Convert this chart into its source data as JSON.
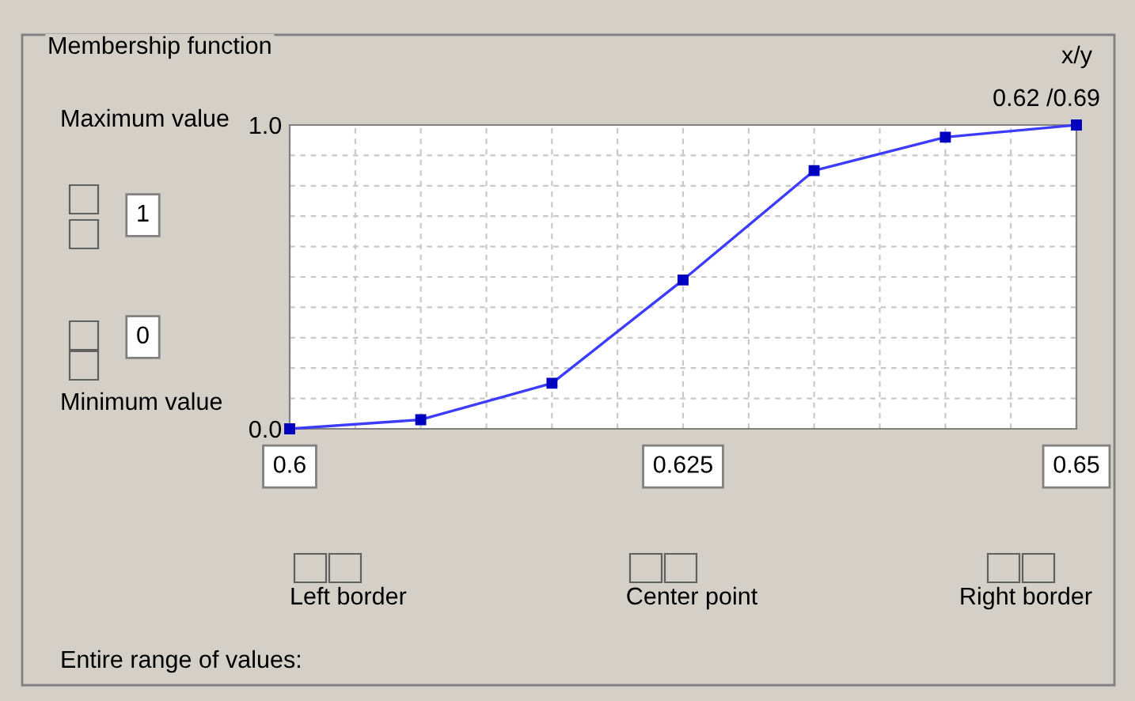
{
  "chart_data": {
    "type": "line",
    "title": "Membership function",
    "x": [
      0.6,
      0.60833,
      0.61667,
      0.625,
      0.63333,
      0.64167,
      0.65
    ],
    "series": [
      {
        "color": "#3c3cff",
        "values": [
          0.0,
          0.03,
          0.15,
          0.49,
          0.85,
          0.96,
          1.0
        ]
      }
    ],
    "xlim": [
      0.6,
      0.65
    ],
    "xticks": [
      0.6,
      {
        "value": 0.60417,
        "label": null
      },
      {
        "value": 0.60833,
        "label": null
      },
      {
        "value": 0.6125,
        "label": null
      },
      {
        "value": 0.61667,
        "label": null
      },
      {
        "value": 0.62083,
        "label": null
      },
      0.625,
      {
        "value": 0.62917,
        "label": null
      },
      {
        "value": 0.63333,
        "label": null
      },
      {
        "value": 0.6375,
        "label": null
      },
      {
        "value": 0.64167,
        "label": null
      },
      {
        "value": 0.64583,
        "label": null
      },
      0.65
    ],
    "ylim": [
      0,
      1
    ],
    "yticks": [
      {
        "value": 0,
        "label": "0.0"
      },
      {
        "value": 0.1,
        "label": null
      },
      {
        "value": 0.2,
        "label": null
      },
      {
        "value": 0.3,
        "label": null
      },
      {
        "value": 0.4,
        "label": null
      },
      {
        "value": 0.5,
        "label": null
      },
      {
        "value": 0.6,
        "label": null
      },
      {
        "value": 0.7,
        "label": null
      },
      {
        "value": 0.8,
        "label": null
      },
      {
        "value": 0.9,
        "label": null
      },
      {
        "value": 1,
        "label": "1.0"
      }
    ],
    "grid": true,
    "marker": "square",
    "line_style": "solid",
    "annotations": [
      "x/y",
      "0.62 /0.69",
      "Maximum value",
      "1",
      "0",
      "Minimum value",
      "Left border",
      "Center point",
      "Right border",
      "Entire range of values:"
    ]
  }
}
